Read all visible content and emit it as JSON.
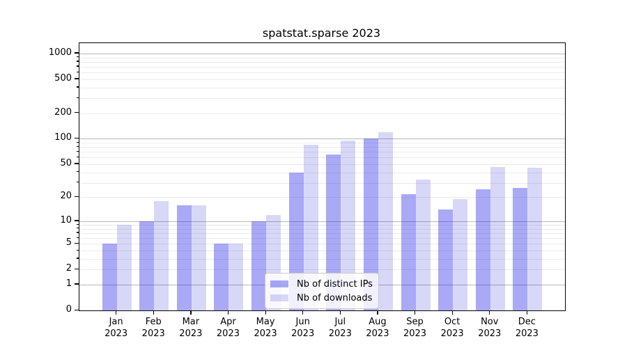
{
  "figure": {
    "title": "spatstat.sparse 2023"
  },
  "chart_data": {
    "type": "bar",
    "title": "spatstat.sparse 2023",
    "scale": "log1p",
    "grid": true,
    "categories": [
      "Jan",
      "Feb",
      "Mar",
      "Apr",
      "May",
      "Jun",
      "Jul",
      "Aug",
      "Sep",
      "Oct",
      "Nov",
      "Dec"
    ],
    "year_label": "2023",
    "series": [
      {
        "name": "Nb of distinct IPs",
        "color": "rgba(10,10,230,0.35)",
        "values": [
          5,
          10,
          16,
          5,
          10,
          40,
          65,
          100,
          22,
          14,
          25,
          26
        ]
      },
      {
        "name": "Nb of downloads",
        "color": "rgba(5,5,210,0.16)",
        "values": [
          9,
          18,
          16,
          5,
          12,
          85,
          95,
          120,
          33,
          19,
          46,
          45
        ]
      }
    ],
    "ylim": [
      0,
      1000
    ],
    "y_ticks": [
      0,
      1,
      2,
      5,
      10,
      20,
      50,
      100,
      200,
      500,
      1000
    ],
    "y_major_gridlines": [
      1,
      10,
      100,
      1000
    ],
    "y_minor_gridlines": [
      2,
      3,
      4,
      5,
      6,
      7,
      8,
      9,
      20,
      30,
      40,
      50,
      60,
      70,
      80,
      90,
      200,
      300,
      400,
      500,
      600,
      700,
      800,
      900
    ],
    "legend": {
      "position": "lower-center",
      "entries": [
        "Nb of distinct IPs",
        "Nb of downloads"
      ]
    }
  },
  "colors": {
    "major_grid": "#b8b8b8",
    "minor_grid": "#ebebeb",
    "spine": "#000000",
    "background": "#ffffff",
    "text": "#000000"
  }
}
